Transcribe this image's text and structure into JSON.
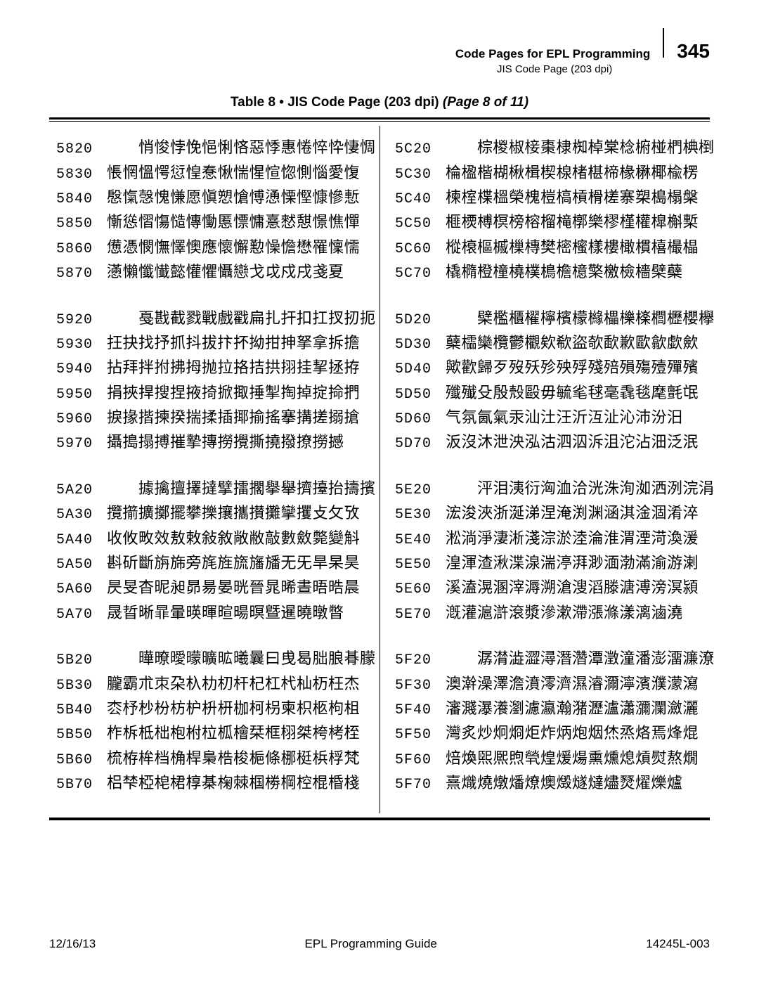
{
  "header": {
    "title": "Code Pages for EPL Programming",
    "subtitle": "JIS Code Page (203 dpi)",
    "page_number": "345"
  },
  "table_title": {
    "label": "Table 8 • JIS Code Page  (203 dpi)",
    "page_note": "(Page 8 of 11)"
  },
  "footer": {
    "left": "12/16/13",
    "center": "EPL Programming Guide",
    "right": "14245L-003"
  },
  "left_column": [
    {
      "rows": [
        {
          "hex": "5820",
          "glyphs": "悄悛悖悗悒悧悋惡悸惠惓悴忰悽惆",
          "indent": true
        },
        {
          "hex": "5830",
          "glyphs": "悵惘慍愕愆惶惷愀惴惺愃惚惻惱愛愎"
        },
        {
          "hex": "5840",
          "glyphs": "慇愾愨愧慊愿愼愬愴愽慂慄慳慷慘慙"
        },
        {
          "hex": "5850",
          "glyphs": "慚慫慴慯慥慱慟慝慓慵憙憖憇憬憔憚"
        },
        {
          "hex": "5860",
          "glyphs": "憊憑憫憮懌懊應懷懈懃懆憺懋罹懍懦"
        },
        {
          "hex": "5870",
          "glyphs": "懣懶懺懴懿懽懼懾戀戈戉戍戌戔夏"
        }
      ]
    },
    {
      "rows": [
        {
          "hex": "5920",
          "glyphs": "戞戡截戮戰戲戳扁扎扞扣扛扠扨扼",
          "indent": true
        },
        {
          "hex": "5930",
          "glyphs": "抂抉找抒抓抖拔抃抔拗拑抻拏拿拆擔"
        },
        {
          "hex": "5940",
          "glyphs": "拈拜拌拊拂拇抛拉挌拮拱挧挂挈拯拵"
        },
        {
          "hex": "5950",
          "glyphs": "捐挾捍搜捏掖掎掀掫捶掣掏掉掟掵捫"
        },
        {
          "hex": "5960",
          "glyphs": "捩掾揩揀揆揣揉插揶揄搖搴搆搓搦搶"
        },
        {
          "hex": "5970",
          "glyphs": "攝搗搨搏摧摯摶撈攪撕撓撥撩撈撼"
        }
      ]
    },
    {
      "rows": [
        {
          "hex": "5A20",
          "glyphs": "據擒擅擇撻擘擂擱擧舉擠擡抬擣擯",
          "indent": true
        },
        {
          "hex": "5A30",
          "glyphs": "攬擶擴擲擺攀擽攘攜攅攤攣攫攴攵攷"
        },
        {
          "hex": "5A40",
          "glyphs": "收攸畋效敖敕敍敘敞敝敲數斂斃變斛"
        },
        {
          "hex": "5A50",
          "glyphs": "斟斫斷旃旆旁旄旌旒旛旙无旡旱杲昊"
        },
        {
          "hex": "5A60",
          "glyphs": "昃旻杳昵昶昴昜晏晄晉晁晞晝晤晧晨"
        },
        {
          "hex": "5A70",
          "glyphs": "晟晢晰暃暈暎暉暄暘暝曁暹曉暾暼"
        }
      ]
    },
    {
      "rows": [
        {
          "hex": "5B20",
          "glyphs": "曄暸曖曚曠昿曦曩曰曵曷朏朖朞朦",
          "indent": true
        },
        {
          "hex": "5B30",
          "glyphs": "朧霸朮朿朶杁朸朷杆杞杠杙杣杤枉杰"
        },
        {
          "hex": "5B40",
          "glyphs": "枩杼杪枌枋枦枡枅枷柯枴柬枳柩枸柤"
        },
        {
          "hex": "5B50",
          "glyphs": "柞柝柢柮枹柎柆柧檜栞框栩桀桍栲桎"
        },
        {
          "hex": "5B60",
          "glyphs": "梳栫桙档桷桿梟梏梭梔條梛梃梹桴梵"
        },
        {
          "hex": "5B70",
          "glyphs": "梠梺椏梍桾椁棊椈棘椢椦棡椌棍棔棧"
        }
      ]
    }
  ],
  "right_column": [
    {
      "rows": [
        {
          "hex": "5C20",
          "glyphs": "棕椶椒椄棗棣椥棹棠棯椨椪椚椣椡",
          "indent": true
        },
        {
          "hex": "5C30",
          "glyphs": "棆楹楷楜楸楫楔楾楮椹楴椽楙椰楡楞"
        },
        {
          "hex": "5C40",
          "glyphs": "楝榁楪榲榮槐榿槁槓榾槎寨槊槝榻槃"
        },
        {
          "hex": "5C50",
          "glyphs": "榧樮榑榠榜榕榴槞槨樂樛槿權槹槲槧"
        },
        {
          "hex": "5C60",
          "glyphs": "樅榱樞槭樔槫樊樒櫁樣樓橄樌橲樶橸"
        },
        {
          "hex": "5C70",
          "glyphs": "橇橢橙橦橈樸樢檐檍檠檄檢檣檗蘗"
        }
      ]
    },
    {
      "rows": [
        {
          "hex": "5D20",
          "glyphs": "檗檻櫃櫂檸檳檬櫞櫑櫟檪櫚櫪櫻欅",
          "indent": true
        },
        {
          "hex": "5D30",
          "glyphs": "蘖櫺欒欖鬱欟欸欷盜欹歃歉歐歙歔歛"
        },
        {
          "hex": "5D40",
          "glyphs": "歟歡歸歹歿殀殄殃殍殘殕殞殤殪殫殯"
        },
        {
          "hex": "5D50",
          "glyphs": "殲殱殳殷殼毆毋毓毟毬毫毳毯麾氈氓"
        },
        {
          "hex": "5D60",
          "glyphs": "气氛氤氣汞汕汢汪沂沍沚沁沛汾汨"
        },
        {
          "hex": "5D70",
          "glyphs": "汳沒沐泄泱泓沽泗泅泝沮沱沾沺泛泯"
        }
      ]
    },
    {
      "rows": [
        {
          "hex": "5E20",
          "glyphs": "泙泪洟衍洶洫洽洸洙洵洳洒洌浣涓",
          "indent": true
        },
        {
          "hex": "5E30",
          "glyphs": "浤浚浹浙涎涕涅淹渕渊涵淇淦涸淆淬"
        },
        {
          "hex": "5E40",
          "glyphs": "淞淌淨淒淅淺淙淤淕淪淮渭湮渮渙湲"
        },
        {
          "hex": "5E50",
          "glyphs": "湟渾渣湫渫湶湍渟湃渺湎渤滿渝游溂"
        },
        {
          "hex": "5E60",
          "glyphs": "溪溘滉溷滓溽溯滄溲滔滕溏溥滂溟潁"
        },
        {
          "hex": "5E70",
          "glyphs": "漑灌滬滸滾漿滲漱滯漲滌漾漓滷澆"
        }
      ]
    },
    {
      "rows": [
        {
          "hex": "5F20",
          "glyphs": "潺潸澁澀潯潛濳潭澂潼潘澎澑濂潦",
          "indent": true
        },
        {
          "hex": "5F30",
          "glyphs": "澳澣澡澤澹濆澪濟濕濬濔濘濱濮濛瀉"
        },
        {
          "hex": "5F40",
          "glyphs": "瀋濺瀑瀁瀏濾瀛瀚潴瀝瀘瀟瀰瀾瀲灑"
        },
        {
          "hex": "5F50",
          "glyphs": "灣炙炒炯烱炬炸炳炮烟烋烝烙焉烽焜"
        },
        {
          "hex": "5F60",
          "glyphs": "焙煥煕熈煦煢煌煖煬熏燻熄熕熨熬燗"
        },
        {
          "hex": "5F70",
          "glyphs": "熹熾燒燉燔燎燠燬燧燵燼燹燿爍爐"
        }
      ]
    }
  ]
}
